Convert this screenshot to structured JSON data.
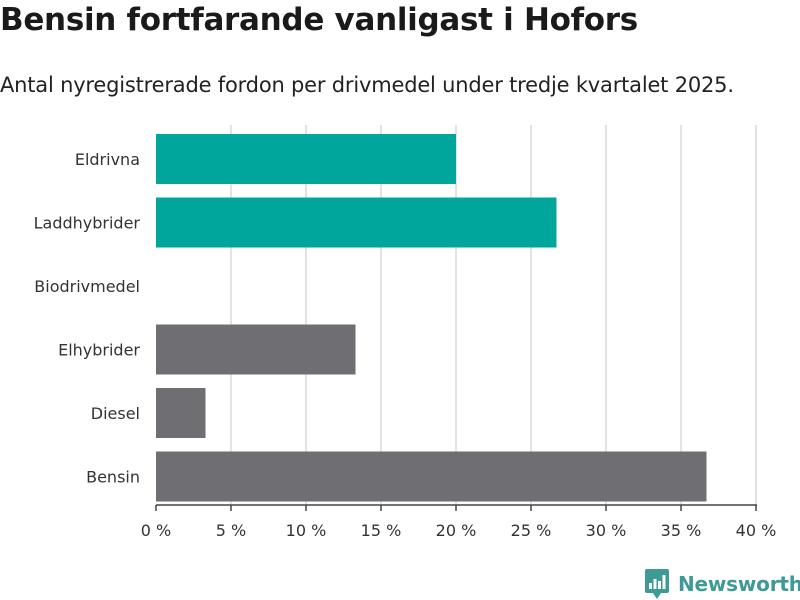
{
  "header": {
    "title": "Bensin fortfarande vanligast i Hofors",
    "subtitle": "Antal nyregistrerade fordon per drivmedel under tredje kvartalet 2025."
  },
  "brand": {
    "name": "Newsworthy",
    "icon": "newsworthy-logo-icon",
    "color": "#3d9a94"
  },
  "colors": {
    "highlight": "#00a59b",
    "other": "#6f6e73",
    "grid": "#d9d9d9",
    "axis": "#444444"
  },
  "chart_data": {
    "type": "bar",
    "orientation": "horizontal",
    "categories": [
      "Eldrivna",
      "Laddhybrider",
      "Biodrivmedel",
      "Elhybrider",
      "Diesel",
      "Bensin"
    ],
    "values": [
      20,
      26.7,
      0,
      13.3,
      3.3,
      36.7
    ],
    "bar_colors": [
      "#00a59b",
      "#00a59b",
      "#00a59b",
      "#6f6e73",
      "#6f6e73",
      "#6f6e73"
    ],
    "xlim": [
      0,
      40
    ],
    "xticks": [
      0,
      5,
      10,
      15,
      20,
      25,
      30,
      35,
      40
    ],
    "tick_labels": [
      "0 %",
      "5 %",
      "10 %",
      "15 %",
      "20 %",
      "25 %",
      "30 %",
      "35 %",
      "40 %"
    ],
    "grid": true,
    "xlabel": "",
    "ylabel": ""
  }
}
